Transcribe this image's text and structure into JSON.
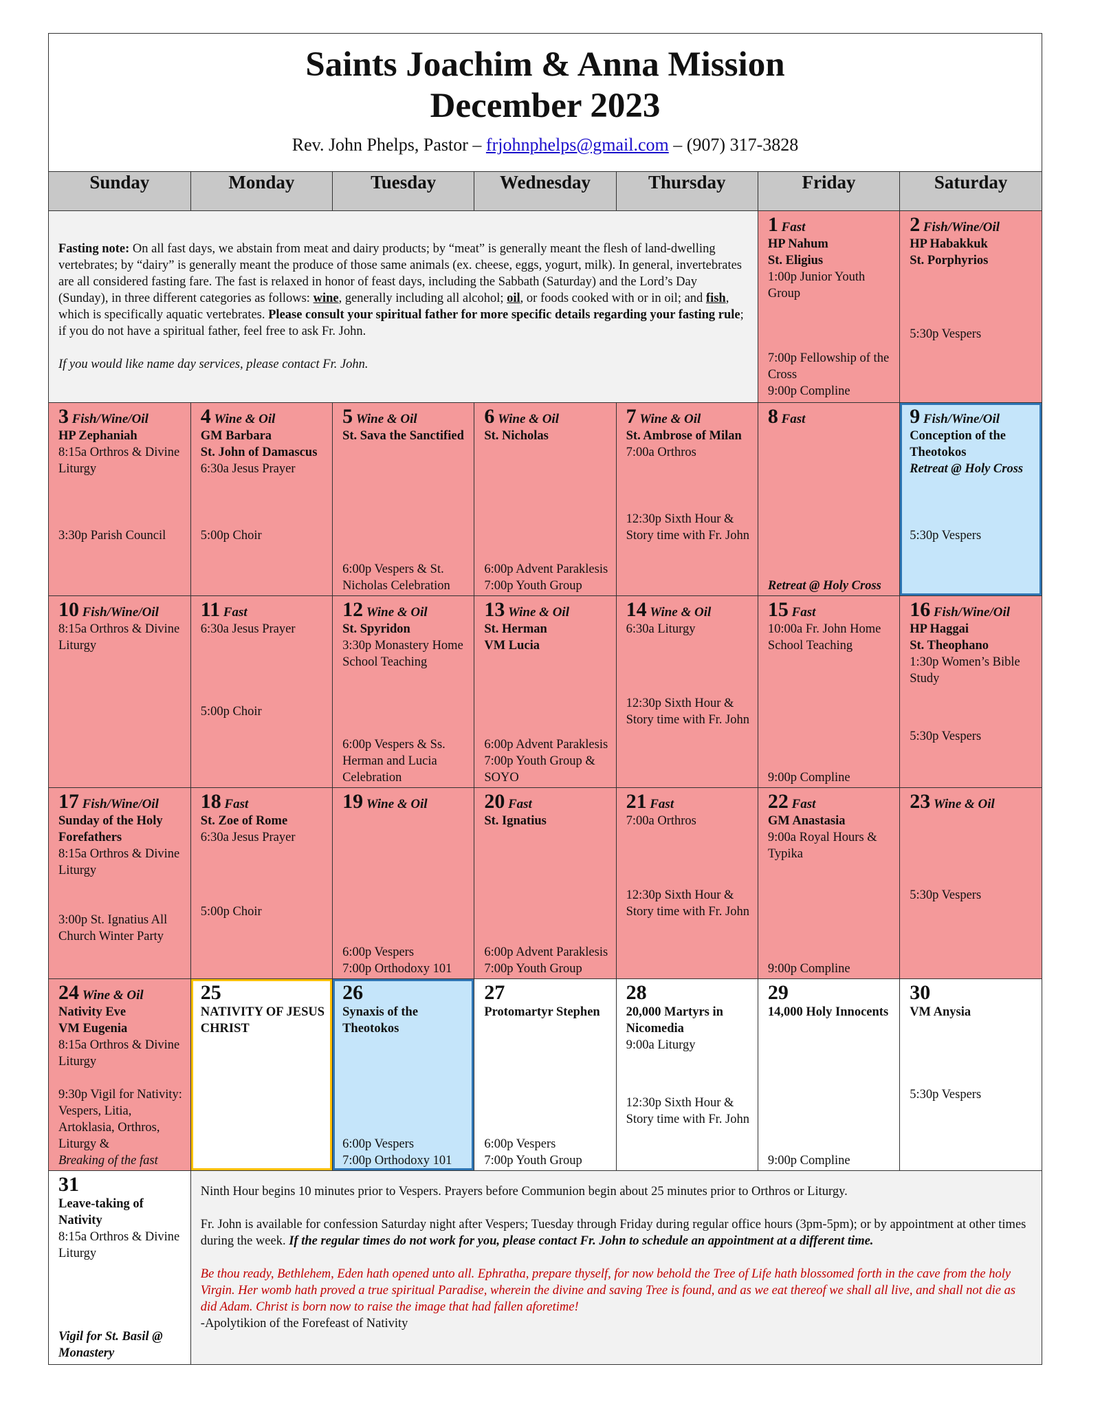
{
  "header": {
    "title_line1": "Saints Joachim & Anna Mission",
    "title_line2": "December 2023",
    "contact_prefix": "Rev. John Phelps, Pastor –",
    "email": "frjohnphelps@gmail.com",
    "contact_suffix": "– (907) 317-3828"
  },
  "weekdays": [
    "Sunday",
    "Monday",
    "Tuesday",
    "Wednesday",
    "Thursday",
    "Friday",
    "Saturday"
  ],
  "fasting_note": [
    {
      "text": "Fasting note:",
      "style": "bold"
    },
    {
      "text": " On all fast days, we abstain from meat and dairy products; by “meat” is generally meant the flesh of land-dwelling vertebrates; by “dairy” is generally meant the produce of those same animals (ex. cheese, eggs, yogurt, milk). In general, invertebrates are all considered fasting fare. The fast is relaxed in honor of feast days, including the Sabbath (Saturday) and the Lord’s Day (Sunday), in three different categories as follows: ",
      "style": "normal"
    },
    {
      "text": "wine",
      "style": "bold-underline"
    },
    {
      "text": ", generally including all alcohol; ",
      "style": "normal"
    },
    {
      "text": "oil",
      "style": "bold-underline"
    },
    {
      "text": ", or foods cooked with or in oil; and ",
      "style": "normal"
    },
    {
      "text": "fish",
      "style": "bold-underline"
    },
    {
      "text": ", which is specifically aquatic vertebrates. ",
      "style": "normal"
    },
    {
      "text": "Please consult your spiritual father for more specific details regarding your fasting rule",
      "style": "bold"
    },
    {
      "text": "; if you do not have a spiritual father, feel free to ask Fr. John.",
      "style": "normal"
    }
  ],
  "name_day_note": "If you would like name day services, please contact Fr. John.",
  "days": [
    {
      "day": "1",
      "fast": "Fast",
      "color": "#f4999a",
      "feasts": [
        "HP Nahum",
        "St. Eligius"
      ],
      "early": [
        "1:00p Junior Youth Group"
      ],
      "mid": [],
      "late": [
        "7:00p Fellowship of the Cross",
        "9:00p Compline"
      ]
    },
    {
      "day": "2",
      "fast": "Fish/Wine/Oil",
      "color": "#f4999a",
      "feasts": [
        "HP Habakkuk",
        "St. Porphyrios"
      ],
      "early": [],
      "mid": [
        "5:30p Vespers"
      ],
      "late": []
    },
    {
      "day": "3",
      "fast": "Fish/Wine/Oil",
      "color": "#f4999a",
      "feasts": [
        "HP Zephaniah"
      ],
      "early": [
        "8:15a Orthros & Divine Liturgy"
      ],
      "mid": [
        "3:30p Parish Council"
      ],
      "late": []
    },
    {
      "day": "4",
      "fast": "Wine & Oil",
      "color": "#f4999a",
      "feasts": [
        "GM Barbara",
        "St. John of Damascus"
      ],
      "early": [
        "6:30a Jesus Prayer"
      ],
      "mid": [
        "5:00p Choir"
      ],
      "late": []
    },
    {
      "day": "5",
      "fast": "Wine & Oil",
      "color": "#f4999a",
      "feasts": [
        "St. Sava the Sanctified"
      ],
      "early": [],
      "mid": [],
      "late": [
        "6:00p Vespers & St. Nicholas Celebration"
      ]
    },
    {
      "day": "6",
      "fast": "Wine & Oil",
      "color": "#f4999a",
      "feasts": [
        "St. Nicholas"
      ],
      "early": [],
      "mid": [],
      "late": [
        "6:00p Advent Paraklesis",
        "7:00p Youth Group"
      ]
    },
    {
      "day": "7",
      "fast": "Wine & Oil",
      "color": "#f4999a",
      "feasts": [
        "St. Ambrose of Milan"
      ],
      "early": [
        "7:00a Orthros"
      ],
      "mid": [
        "12:30p Sixth Hour & Story time with Fr. John"
      ],
      "late": []
    },
    {
      "day": "8",
      "fast": "Fast",
      "color": "#f4999a",
      "feasts": [],
      "early": [],
      "mid": [],
      "late": [
        {
          "text": "Retreat @ Holy Cross",
          "style": "bold-italic"
        }
      ]
    },
    {
      "day": "9",
      "fast": "Fish/Wine/Oil",
      "color": "#c5e5fa",
      "border": "#2f76b5",
      "feasts": [
        "Conception of the Theotokos"
      ],
      "early": [
        {
          "text": "Retreat @ Holy Cross",
          "style": "bold-italic"
        }
      ],
      "mid": [
        "5:30p Vespers"
      ],
      "late": []
    },
    {
      "day": "10",
      "fast": "Fish/Wine/Oil",
      "color": "#f4999a",
      "feasts": [],
      "early": [
        "8:15a Orthros & Divine Liturgy"
      ],
      "mid": [],
      "late": []
    },
    {
      "day": "11",
      "fast": "Fast",
      "color": "#f4999a",
      "feasts": [],
      "early": [
        "6:30a Jesus Prayer"
      ],
      "mid": [
        "5:00p Choir"
      ],
      "late": []
    },
    {
      "day": "12",
      "fast": "Wine & Oil",
      "color": "#f4999a",
      "feasts": [
        "St. Spyridon"
      ],
      "early": [
        "3:30p Monastery Home School Teaching"
      ],
      "mid": [],
      "late": [
        "6:00p Vespers & Ss. Herman and Lucia Celebration"
      ]
    },
    {
      "day": "13",
      "fast": "Wine & Oil",
      "color": "#f4999a",
      "feasts": [
        "St. Herman",
        "VM Lucia"
      ],
      "early": [],
      "mid": [],
      "late": [
        "6:00p Advent Paraklesis",
        "7:00p Youth Group & SOYO"
      ]
    },
    {
      "day": "14",
      "fast": "Wine & Oil",
      "color": "#f4999a",
      "feasts": [],
      "early": [
        "6:30a Liturgy"
      ],
      "mid": [
        "12:30p Sixth Hour & Story time with Fr. John"
      ],
      "late": []
    },
    {
      "day": "15",
      "fast": "Fast",
      "color": "#f4999a",
      "feasts": [],
      "early": [
        "10:00a Fr. John Home School Teaching"
      ],
      "mid": [],
      "late": [
        "9:00p Compline"
      ]
    },
    {
      "day": "16",
      "fast": "Fish/Wine/Oil",
      "color": "#f4999a",
      "feasts": [
        "HP Haggai",
        "St. Theophano"
      ],
      "early": [
        "1:30p Women’s Bible Study"
      ],
      "mid": [
        "5:30p Vespers"
      ],
      "late": []
    },
    {
      "day": "17",
      "fast": "Fish/Wine/Oil",
      "color": "#f4999a",
      "feasts": [
        "Sunday of the Holy Forefathers"
      ],
      "early": [
        "8:15a Orthros & Divine Liturgy"
      ],
      "mid": [
        "3:00p St. Ignatius All Church Winter Party"
      ],
      "late": []
    },
    {
      "day": "18",
      "fast": "Fast",
      "color": "#f4999a",
      "feasts": [
        "St. Zoe of Rome"
      ],
      "early": [
        "6:30a Jesus Prayer"
      ],
      "mid": [
        "5:00p Choir"
      ],
      "late": []
    },
    {
      "day": "19",
      "fast": "Wine & Oil",
      "color": "#f4999a",
      "feasts": [],
      "early": [],
      "mid": [],
      "late": [
        "6:00p Vespers",
        "7:00p Orthodoxy 101"
      ]
    },
    {
      "day": "20",
      "fast": "Fast",
      "color": "#f4999a",
      "feasts": [
        "St. Ignatius"
      ],
      "early": [],
      "mid": [],
      "late": [
        "6:00p Advent Paraklesis",
        "7:00p Youth Group"
      ]
    },
    {
      "day": "21",
      "fast": "Fast",
      "color": "#f4999a",
      "feasts": [],
      "early": [
        "7:00a Orthros"
      ],
      "mid": [
        "12:30p Sixth Hour & Story time with Fr. John"
      ],
      "late": []
    },
    {
      "day": "22",
      "fast": "Fast",
      "color": "#f4999a",
      "feasts": [
        "GM Anastasia"
      ],
      "early": [
        "9:00a Royal Hours & Typika"
      ],
      "mid": [],
      "late": [
        "9:00p Compline"
      ]
    },
    {
      "day": "23",
      "fast": "Wine & Oil",
      "color": "#f4999a",
      "feasts": [],
      "early": [],
      "mid": [
        "5:30p Vespers"
      ],
      "late": []
    },
    {
      "day": "24",
      "fast": "Wine & Oil",
      "color": "#f4999a",
      "feasts": [
        "Nativity Eve",
        "VM Eugenia"
      ],
      "early": [
        "8:15a Orthros & Divine Liturgy"
      ],
      "mid": [],
      "late": [
        "9:30p Vigil for Nativity: Vespers, Litia, Artoklasia, Orthros, Liturgy &",
        {
          "text": "Breaking of the fast",
          "style": "italic"
        }
      ]
    },
    {
      "day": "25",
      "color": "#ffffff",
      "border": "#ffc000",
      "feasts": [
        "NATIVITY OF JESUS CHRIST"
      ],
      "early": [],
      "mid": [],
      "late": []
    },
    {
      "day": "26",
      "color": "#c5e5fa",
      "border": "#2f76b5",
      "feasts": [
        "Synaxis of the Theotokos"
      ],
      "early": [],
      "mid": [],
      "late": [
        "6:00p Vespers",
        "7:00p Orthodoxy 101"
      ]
    },
    {
      "day": "27",
      "color": "#ffffff",
      "feasts": [
        "Protomartyr Stephen"
      ],
      "early": [],
      "mid": [],
      "late": [
        "6:00p Vespers",
        "7:00p Youth Group"
      ]
    },
    {
      "day": "28",
      "color": "#ffffff",
      "feasts": [
        "20,000 Martyrs in Nicomedia"
      ],
      "early": [
        "9:00a Liturgy"
      ],
      "mid": [
        "12:30p Sixth Hour & Story time with Fr. John"
      ],
      "late": []
    },
    {
      "day": "29",
      "color": "#ffffff",
      "feasts": [
        "14,000 Holy Innocents"
      ],
      "early": [],
      "mid": [],
      "late": [
        "9:00p Compline"
      ]
    },
    {
      "day": "30",
      "color": "#ffffff",
      "feasts": [
        "VM Anysia"
      ],
      "early": [],
      "mid": [
        "5:30p Vespers"
      ],
      "late": []
    },
    {
      "day": "31",
      "color": "#ffffff",
      "feasts": [
        "Leave-taking of Nativity"
      ],
      "early": [
        "8:15a Orthros & Divine Liturgy"
      ],
      "mid": [],
      "late": [
        {
          "text": "Vigil for St. Basil @ Monastery",
          "style": "bold-italic"
        }
      ]
    }
  ],
  "footer_note": [
    [
      {
        "text": "Ninth Hour begins 10 minutes prior to Vespers. Prayers before Communion begin about 25 minutes prior to Orthros or Liturgy.",
        "style": "normal"
      }
    ],
    [
      {
        "text": "Fr. John is available for confession Saturday night after Vespers; Tuesday through Friday during regular office hours (3pm-5pm); or by appointment at other times during the week. ",
        "style": "normal"
      },
      {
        "text": "If the regular times do not work for you, please contact Fr. John to schedule an appointment at a different time.",
        "style": "bold-italic"
      }
    ],
    [
      {
        "text": "Be thou ready, Bethlehem, Eden hath opened unto all. Ephratha, prepare thyself, for now behold the Tree of Life hath blossomed forth in the cave from the holy Virgin. Her womb hath proved a true spiritual Paradise, wherein the divine and saving Tree is found, and as we eat thereof we shall all live, and shall not die as did Adam. Christ is born now to raise the image that had fallen aforetime!",
        "style": "red-italic"
      },
      {
        "text": "-Apolytikion of the Forefeast of Nativity",
        "style": "break-normal"
      }
    ]
  ]
}
